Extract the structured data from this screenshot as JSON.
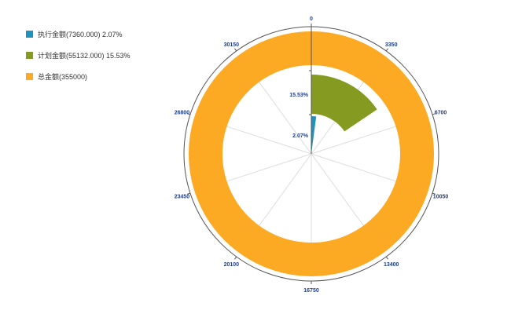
{
  "chart_data": {
    "type": "polar-bar",
    "angle_axis": {
      "min": 0,
      "max": 33500,
      "ticks": [
        "0",
        "3350",
        "6700",
        "10050",
        "13400",
        "16750",
        "20100",
        "23450",
        "26800",
        "30150"
      ]
    },
    "series": [
      {
        "name": "执行金额(7360.000) 2.07%",
        "value": 2.07,
        "label": "2.07%",
        "color": "#1e93c0",
        "ring": 0
      },
      {
        "name": "计划金额(55132.000) 15.53%",
        "value": 15.53,
        "label": "15.53%",
        "color": "#849a21",
        "ring": 1
      },
      {
        "name": "总金额(355000)",
        "value": 100,
        "label": "",
        "color": "#fca924",
        "ring": 2
      }
    ],
    "legend_position": "top-left"
  }
}
